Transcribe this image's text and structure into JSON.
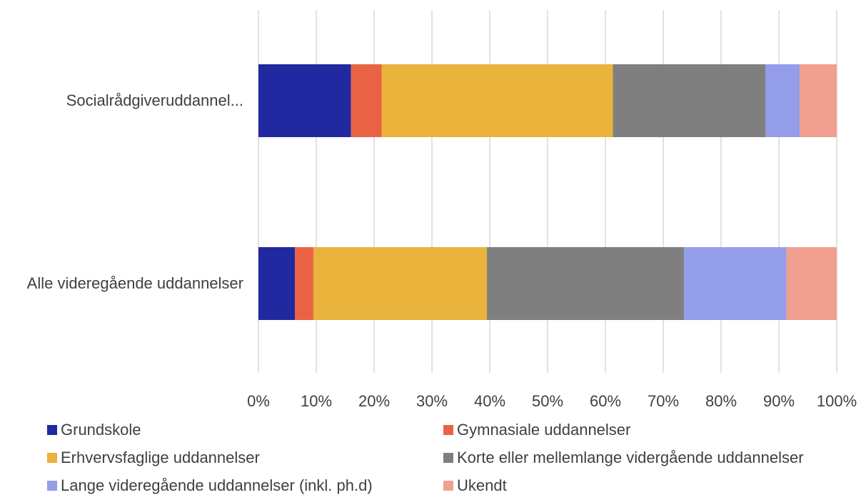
{
  "chart_data": {
    "type": "bar",
    "orientation": "horizontal",
    "stacked": "percent",
    "categories": [
      "Socialrådgiveruddannel...",
      "Alle videregående uddannelser"
    ],
    "series": [
      {
        "name": "Grundskole",
        "color": "#2029a0",
        "values": [
          16.0,
          6.3
        ]
      },
      {
        "name": "Gymnasiale uddannelser",
        "color": "#e96244",
        "values": [
          5.3,
          3.2
        ]
      },
      {
        "name": "Erhvervsfaglige uddannelser",
        "color": "#e9b33c",
        "values": [
          40.0,
          30.0
        ]
      },
      {
        "name": "Korte eller mellemlange vidergående uddannelser",
        "color": "#7f7f7f",
        "values": [
          26.4,
          34.1
        ]
      },
      {
        "name": "Lange videregående uddannelser (inkl. ph.d)",
        "color": "#939dea",
        "values": [
          5.9,
          17.7
        ]
      },
      {
        "name": "Ukendt",
        "color": "#f19f8f",
        "values": [
          6.4,
          8.7
        ]
      }
    ],
    "xlim": [
      0,
      100
    ],
    "xticks": [
      "0%",
      "10%",
      "20%",
      "30%",
      "40%",
      "50%",
      "60%",
      "70%",
      "80%",
      "90%",
      "100%"
    ],
    "grid": true,
    "legend_position": "bottom"
  }
}
